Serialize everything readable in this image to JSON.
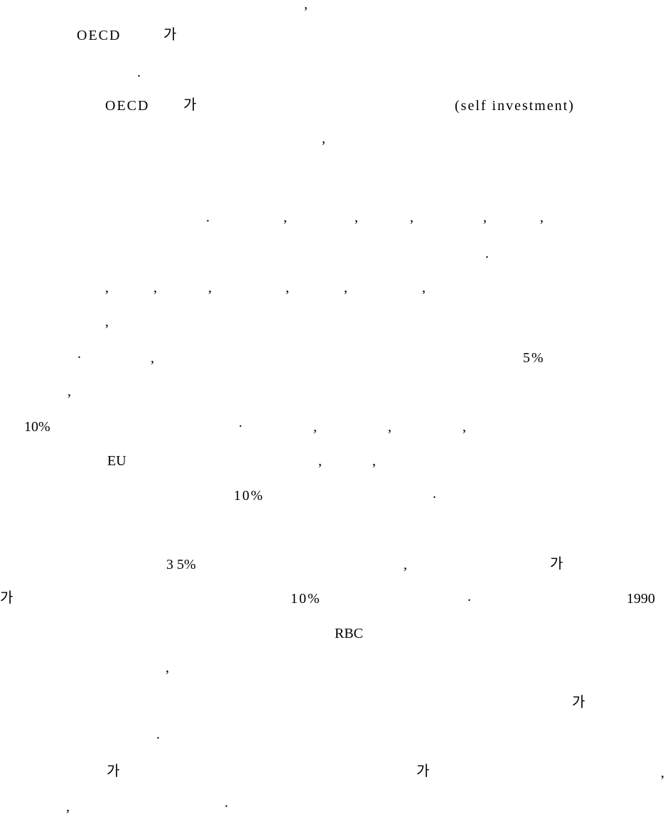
{
  "line_01": {
    "comma_a": ","
  },
  "line_02": {
    "oecd": "OECD",
    "ga": "가"
  },
  "line_03": {
    "period_a": "."
  },
  "line_04": {
    "oecd": "OECD",
    "ga": "가",
    "self_investment": "(self investment)"
  },
  "line_05": {
    "comma_a": ","
  },
  "line_06": {
    "period_a": ".",
    "comma_a": ",",
    "comma_b": ",",
    "comma_c": ",",
    "comma_d": ",",
    "comma_e": ","
  },
  "line_07": {
    "period_a": "."
  },
  "line_08": {
    "comma_a": ",",
    "comma_b": ",",
    "comma_c": ",",
    "comma_d": ",",
    "comma_e": ",",
    "comma_f": ","
  },
  "line_09": {
    "comma_a": ","
  },
  "line_10": {
    "period_a": ".",
    "comma_a": ",",
    "percent_5": "5%"
  },
  "line_11": {
    "comma_a": ","
  },
  "line_12": {
    "percent_10": "10%",
    "period_a": ".",
    "comma_a": ",",
    "comma_b": ",",
    "comma_c": ","
  },
  "line_13": {
    "eu": "EU",
    "comma_a": ",",
    "comma_b": ","
  },
  "line_14": {
    "percent_10": "10%",
    "period_a": "."
  },
  "line_15": {
    "range_3_5": "3 5%",
    "comma_a": ",",
    "ga": "가"
  },
  "line_16": {
    "ga": "가",
    "percent_10": "10%",
    "period_a": ".",
    "year_1990": "1990"
  },
  "line_17": {
    "rbc": "RBC"
  },
  "line_18": {
    "comma_a": ","
  },
  "line_19": {
    "ga": "가"
  },
  "line_20": {
    "period_a": "."
  },
  "line_21": {
    "ga_a": "가",
    "ga_b": "가",
    "comma_a": ","
  },
  "line_22": {
    "comma_a": ",",
    "period_a": "."
  }
}
